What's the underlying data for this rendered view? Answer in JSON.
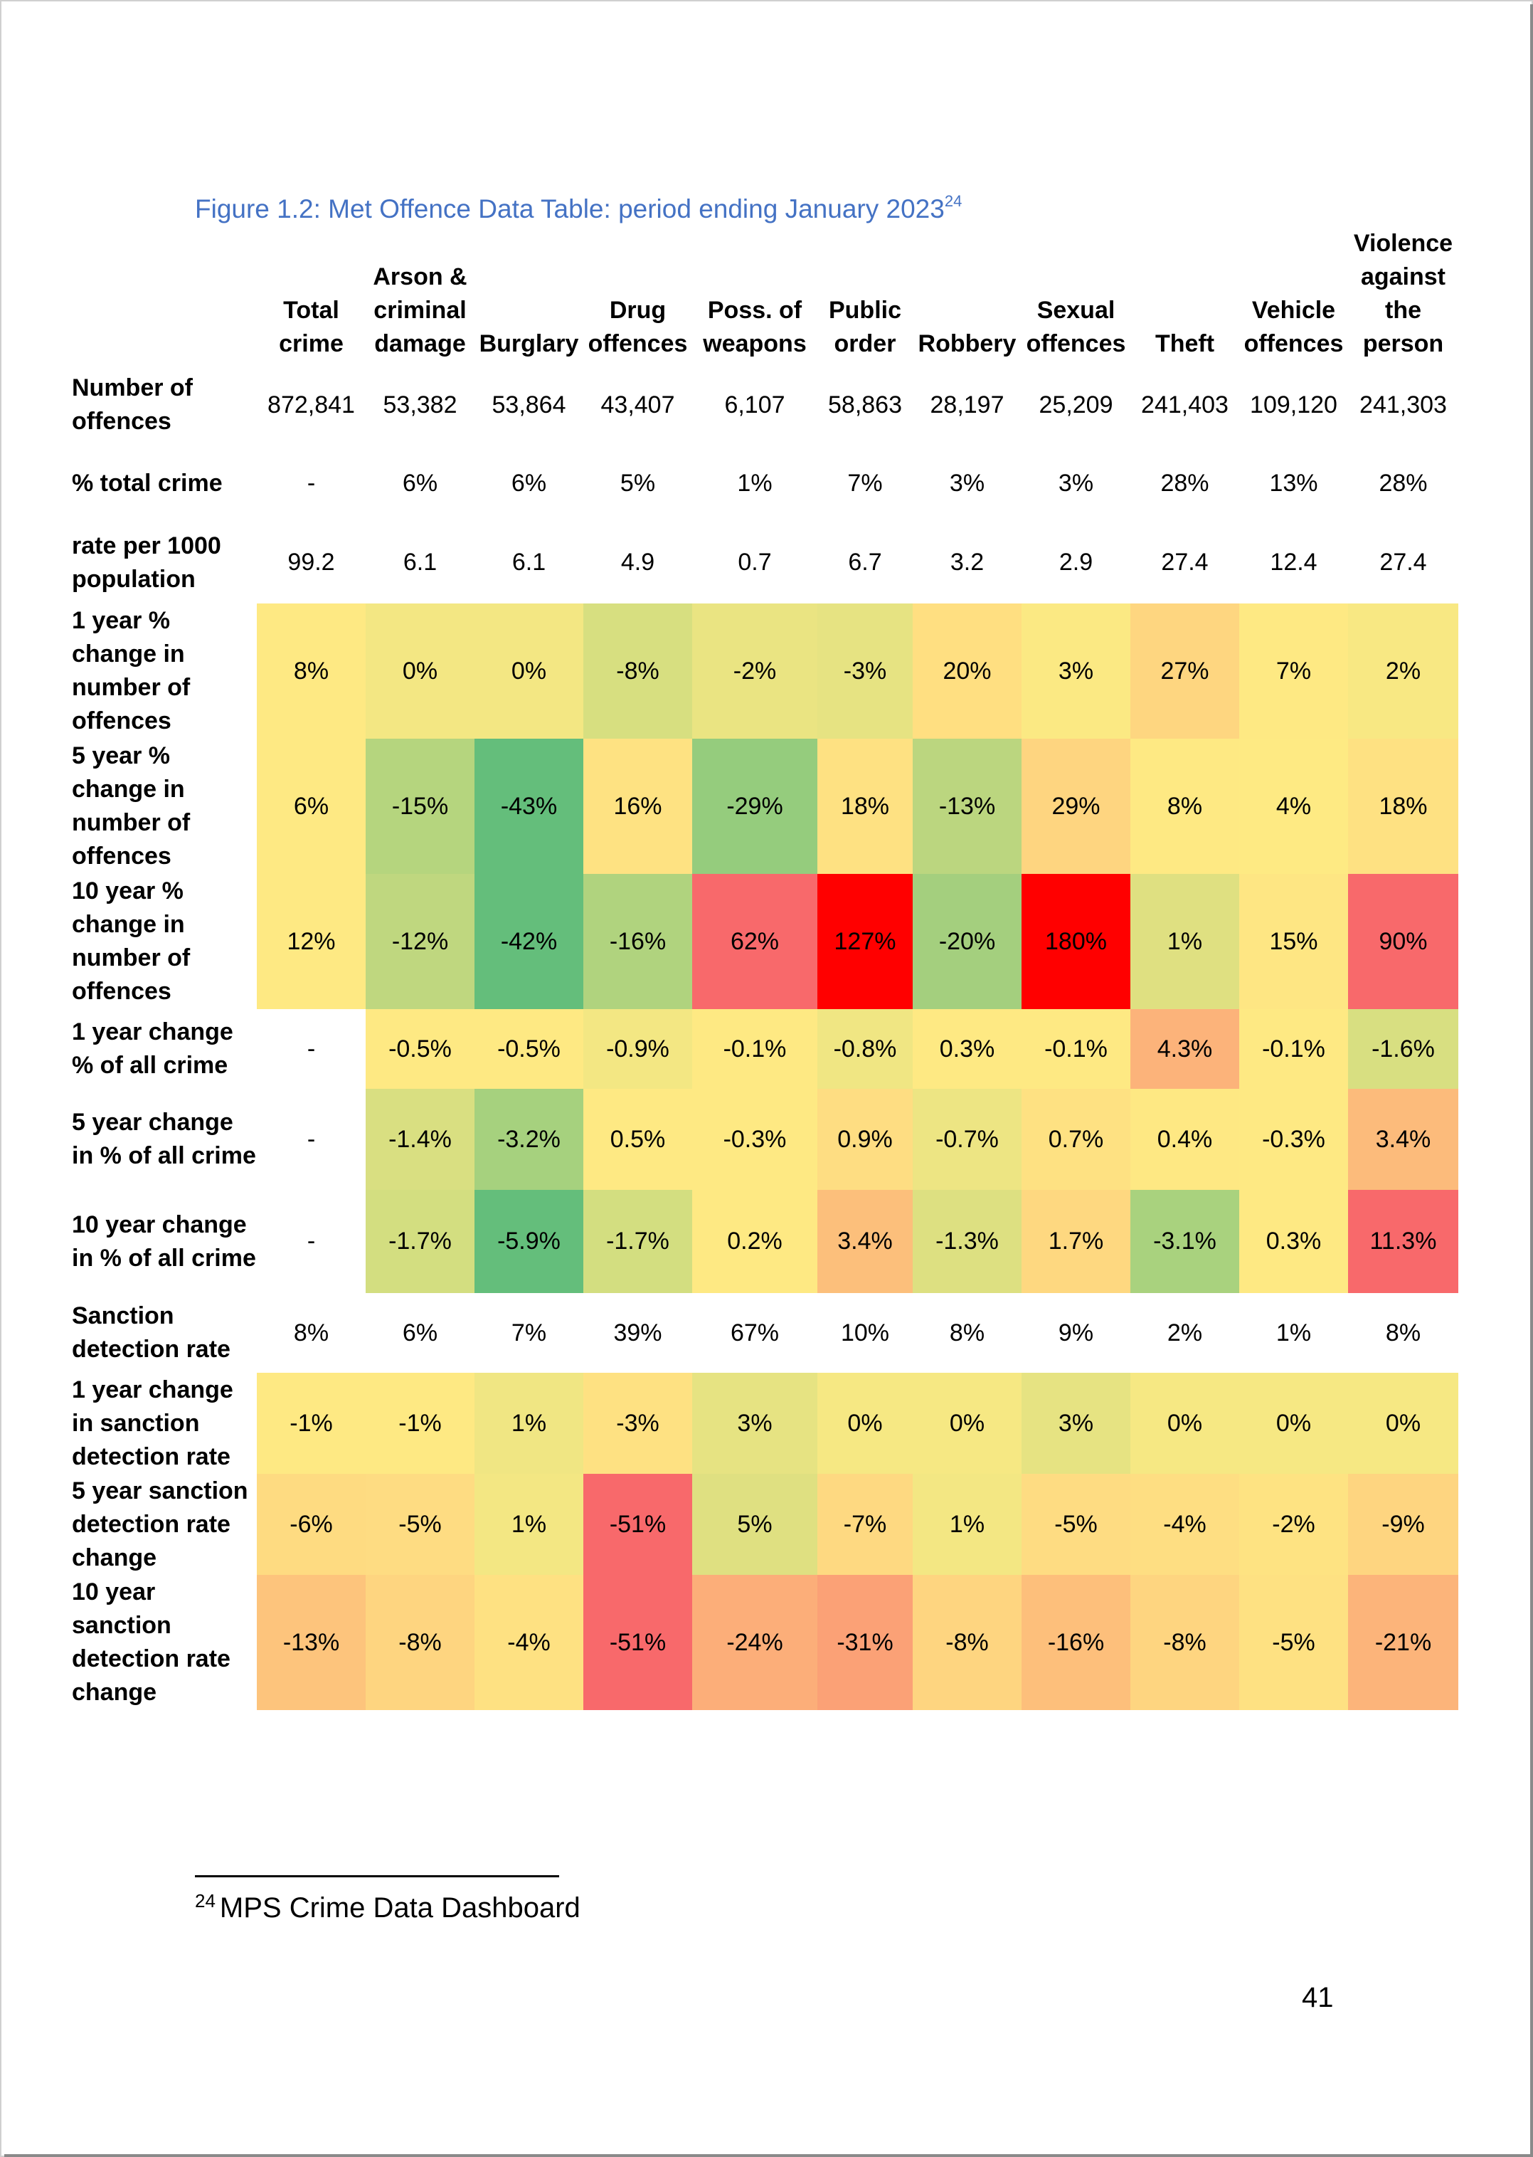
{
  "caption": {
    "text": "Figure 1.2: Met Offence Data Table: period ending January 2023",
    "note_ref": "24"
  },
  "table": {
    "columns": [
      "Total crime",
      "Arson & criminal damage",
      "Burglary",
      "Drug offences",
      "Poss. of weapons",
      "Public order",
      "Robbery",
      "Sexual offences",
      "Theft",
      "Vehicle offences",
      "Violence against the person"
    ],
    "rows": [
      {
        "label": "Number of offences",
        "values": [
          "872,841",
          "53,382",
          "53,864",
          "43,407",
          "6,107",
          "58,863",
          "28,197",
          "25,209",
          "241,403",
          "109,120",
          "241,303"
        ],
        "colors": []
      },
      {
        "label": "% total crime",
        "values": [
          "-",
          "6%",
          "6%",
          "5%",
          "1%",
          "7%",
          "3%",
          "3%",
          "28%",
          "13%",
          "28%"
        ],
        "colors": []
      },
      {
        "label": "rate per 1000 population",
        "values": [
          "99.2",
          "6.1",
          "6.1",
          "4.9",
          "0.7",
          "6.7",
          "3.2",
          "2.9",
          "27.4",
          "12.4",
          "27.4"
        ],
        "colors": []
      },
      {
        "label": "1 year % change in number of offences",
        "values": [
          "8%",
          "0%",
          "0%",
          "-8%",
          "-2%",
          "-3%",
          "20%",
          "3%",
          "27%",
          "7%",
          "2%"
        ],
        "colors": [
          "#fee983",
          "#f3e783",
          "#f3e783",
          "#d7df80",
          "#eae482",
          "#e6e382",
          "#ffdf81",
          "#fbe983",
          "#fed680",
          "#fee983",
          "#f8e883"
        ]
      },
      {
        "label": "5 year % change in number of offences",
        "values": [
          "6%",
          "-15%",
          "-43%",
          "16%",
          "-29%",
          "18%",
          "-13%",
          "29%",
          "8%",
          "4%",
          "18%"
        ],
        "colors": [
          "#fee983",
          "#b5d57e",
          "#64be7b",
          "#fee282",
          "#95cc7d",
          "#fee182",
          "#bbd67f",
          "#fed580",
          "#fee983",
          "#feea83",
          "#fee182"
        ]
      },
      {
        "label": "10 year % change in number of offences",
        "values": [
          "12%",
          "-12%",
          "-42%",
          "-16%",
          "62%",
          "127%",
          "-20%",
          "180%",
          "1%",
          "15%",
          "90%"
        ],
        "colors": [
          "#fee983",
          "#bfd77f",
          "#64be7b",
          "#b0d37e",
          "#f8696b",
          "#ff0000",
          "#a4cf7e",
          "#ff0000",
          "#dfe081",
          "#fee683",
          "#f8696b"
        ]
      },
      {
        "label": "1 year change % of all crime",
        "values": [
          "-",
          "-0.5%",
          "-0.5%",
          "-0.9%",
          "-0.1%",
          "-0.8%",
          "0.3%",
          "-0.1%",
          "4.3%",
          "-0.1%",
          "-1.6%"
        ],
        "colors": [
          "#ffffff",
          "#fee983",
          "#fee983",
          "#f3e783",
          "#fee983",
          "#f0e683",
          "#fee983",
          "#fee983",
          "#fcb37a",
          "#fee983",
          "#d8df81"
        ]
      },
      {
        "label": "5 year change in % of all crime",
        "values": [
          "-",
          "-1.4%",
          "-3.2%",
          "0.5%",
          "-0.3%",
          "0.9%",
          "-0.7%",
          "0.7%",
          "0.4%",
          "-0.3%",
          "3.4%"
        ],
        "colors": [
          "#ffffff",
          "#d9df81",
          "#a6d17e",
          "#fee983",
          "#fee983",
          "#fedd82",
          "#ede583",
          "#fee182",
          "#fee883",
          "#fee983",
          "#fcbb7b"
        ]
      },
      {
        "label": "10 year change in % of all crime",
        "values": [
          "-",
          "-1.7%",
          "-5.9%",
          "-1.7%",
          "0.2%",
          "3.4%",
          "-1.3%",
          "1.7%",
          "-3.1%",
          "0.3%",
          "11.3%"
        ],
        "colors": [
          "#ffffff",
          "#d3de80",
          "#64be7b",
          "#d3de80",
          "#fee983",
          "#fcbf7b",
          "#dde081",
          "#fed880",
          "#a9d27e",
          "#fee983",
          "#f8696b"
        ]
      },
      {
        "label": "Sanction detection rate",
        "values": [
          "8%",
          "6%",
          "7%",
          "39%",
          "67%",
          "10%",
          "8%",
          "9%",
          "2%",
          "1%",
          "8%"
        ],
        "colors": []
      },
      {
        "label": "1 year change in sanction detection rate",
        "values": [
          "-1%",
          "-1%",
          "1%",
          "-3%",
          "3%",
          "0%",
          "0%",
          "3%",
          "0%",
          "0%",
          "0%"
        ],
        "colors": [
          "#fee983",
          "#fee983",
          "#f0e683",
          "#fee182",
          "#e6e382",
          "#f6e883",
          "#f6e883",
          "#e6e382",
          "#f6e883",
          "#f6e883",
          "#f6e883"
        ]
      },
      {
        "label": "5 year sanction detection rate change",
        "values": [
          "-6%",
          "-5%",
          "1%",
          "-51%",
          "5%",
          "-7%",
          "1%",
          "-5%",
          "-4%",
          "-2%",
          "-9%"
        ],
        "colors": [
          "#fedb81",
          "#fedc82",
          "#f3e783",
          "#f8696b",
          "#dfe081",
          "#fed981",
          "#f3e783",
          "#fedc82",
          "#fede82",
          "#fee382",
          "#fed580"
        ]
      },
      {
        "label": "10 year sanction detection rate change",
        "values": [
          "-13%",
          "-8%",
          "-4%",
          "-51%",
          "-24%",
          "-31%",
          "-8%",
          "-16%",
          "-8%",
          "-5%",
          "-21%"
        ],
        "colors": [
          "#fdc47c",
          "#fed580",
          "#fee182",
          "#f8696b",
          "#fcae79",
          "#fba176",
          "#fed580",
          "#fdbf7b",
          "#fed580",
          "#fee182",
          "#fcb47a"
        ]
      }
    ]
  },
  "footnote": {
    "num": "24",
    "text": "MPS Crime Data Dashboard"
  },
  "page_number": "41"
}
